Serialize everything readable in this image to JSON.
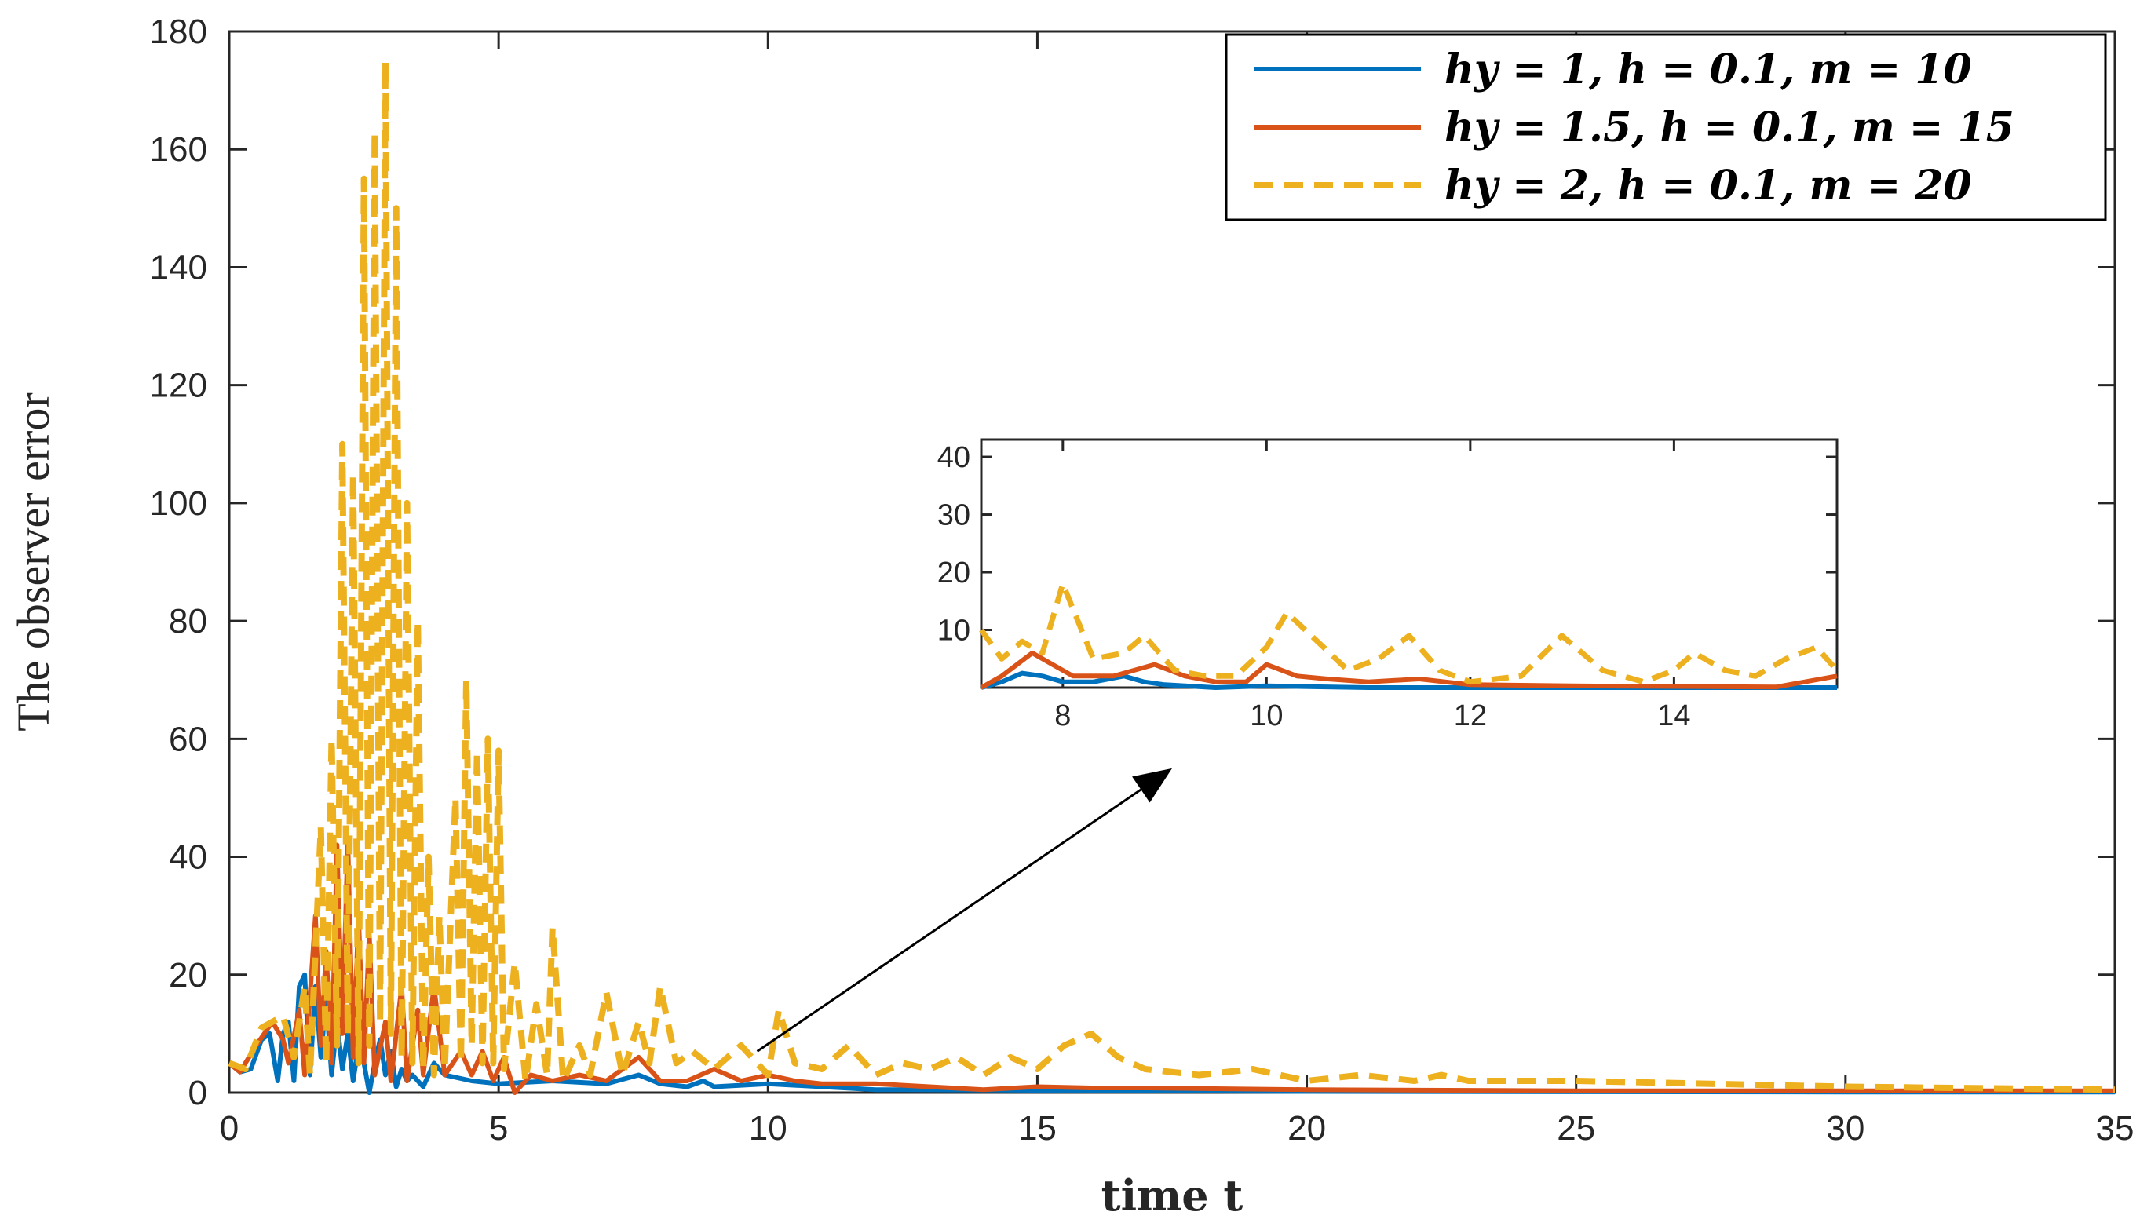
{
  "chart_data": {
    "type": "line",
    "title": "",
    "xlabel": "time t",
    "ylabel": "The observer error",
    "xlim": [
      0,
      35
    ],
    "ylim": [
      0,
      180
    ],
    "xticks": [
      0,
      5,
      10,
      15,
      20,
      25,
      30,
      35
    ],
    "yticks": [
      0,
      20,
      40,
      60,
      80,
      100,
      120,
      140,
      160,
      180
    ],
    "legend_position": "top-right",
    "series": [
      {
        "name": "h_y = 1, h = 0.1, m = 10",
        "legend_label": "hy = 1, h = 0.1, m = 10",
        "color": "#0072BD",
        "style": "solid",
        "points": [
          [
            0,
            5
          ],
          [
            0.2,
            3.5
          ],
          [
            0.4,
            4
          ],
          [
            0.6,
            9
          ],
          [
            0.75,
            10
          ],
          [
            0.9,
            2
          ],
          [
            1.0,
            10
          ],
          [
            1.1,
            12
          ],
          [
            1.2,
            2
          ],
          [
            1.3,
            18
          ],
          [
            1.4,
            20
          ],
          [
            1.5,
            3
          ],
          [
            1.6,
            18
          ],
          [
            1.7,
            6
          ],
          [
            1.8,
            16
          ],
          [
            1.9,
            3
          ],
          [
            2.0,
            12
          ],
          [
            2.1,
            4
          ],
          [
            2.2,
            10
          ],
          [
            2.3,
            2
          ],
          [
            2.4,
            8
          ],
          [
            2.5,
            5
          ],
          [
            2.6,
            0
          ],
          [
            2.7,
            5
          ],
          [
            2.8,
            9
          ],
          [
            2.9,
            3
          ],
          [
            3.0,
            7
          ],
          [
            3.1,
            1
          ],
          [
            3.2,
            4
          ],
          [
            3.3,
            2
          ],
          [
            3.4,
            3
          ],
          [
            3.6,
            1
          ],
          [
            3.8,
            5
          ],
          [
            4.0,
            3
          ],
          [
            4.5,
            2
          ],
          [
            5,
            1.5
          ],
          [
            6,
            2
          ],
          [
            7,
            1.5
          ],
          [
            7.6,
            3
          ],
          [
            8,
            1.5
          ],
          [
            8.5,
            1
          ],
          [
            8.8,
            2
          ],
          [
            9,
            1
          ],
          [
            10,
            1.5
          ],
          [
            12,
            0.5
          ],
          [
            15,
            0.4
          ],
          [
            20,
            0.2
          ],
          [
            25,
            0.15
          ],
          [
            30,
            0.1
          ],
          [
            35,
            0.1
          ]
        ]
      },
      {
        "name": "h_y = 1.5, h = 0.1, m = 15",
        "legend_label": "hy = 1.5, h = 0.1, m = 15",
        "color": "#D95319",
        "style": "solid",
        "points": [
          [
            0,
            5
          ],
          [
            0.2,
            3.5
          ],
          [
            0.5,
            8
          ],
          [
            0.8,
            12
          ],
          [
            1.0,
            9
          ],
          [
            1.1,
            5
          ],
          [
            1.3,
            14
          ],
          [
            1.4,
            3
          ],
          [
            1.6,
            30
          ],
          [
            1.7,
            8
          ],
          [
            1.8,
            24
          ],
          [
            1.9,
            5
          ],
          [
            2.0,
            42
          ],
          [
            2.1,
            10
          ],
          [
            2.2,
            43
          ],
          [
            2.3,
            6
          ],
          [
            2.4,
            30
          ],
          [
            2.5,
            5
          ],
          [
            2.6,
            27
          ],
          [
            2.7,
            3
          ],
          [
            2.9,
            12
          ],
          [
            3.0,
            2
          ],
          [
            3.2,
            18
          ],
          [
            3.3,
            2
          ],
          [
            3.5,
            14
          ],
          [
            3.6,
            3
          ],
          [
            3.8,
            18
          ],
          [
            4.0,
            3
          ],
          [
            4.3,
            7
          ],
          [
            4.5,
            3
          ],
          [
            4.7,
            7
          ],
          [
            4.9,
            2
          ],
          [
            5.1,
            6
          ],
          [
            5.3,
            0
          ],
          [
            5.6,
            3
          ],
          [
            6,
            2
          ],
          [
            6.5,
            3
          ],
          [
            7,
            2
          ],
          [
            7.6,
            6
          ],
          [
            8.0,
            2
          ],
          [
            8.5,
            2
          ],
          [
            9,
            4
          ],
          [
            9.5,
            2
          ],
          [
            10,
            3
          ],
          [
            10.5,
            2
          ],
          [
            11,
            1.5
          ],
          [
            12,
            1.5
          ],
          [
            13,
            1
          ],
          [
            14,
            0.5
          ],
          [
            15,
            1
          ],
          [
            16,
            0.8
          ],
          [
            17,
            0.8
          ],
          [
            20,
            0.5
          ],
          [
            25,
            0.3
          ],
          [
            30,
            0.3
          ],
          [
            35,
            0.3
          ]
        ]
      },
      {
        "name": "h_y = 2, h = 0.1, m = 20",
        "legend_label": "hy = 2, h = 0.1, m = 20",
        "color": "#EDB120",
        "style": "dashed",
        "points": [
          [
            0,
            5
          ],
          [
            0.3,
            4
          ],
          [
            0.6,
            11
          ],
          [
            0.8,
            12
          ],
          [
            1.0,
            13
          ],
          [
            1.2,
            6
          ],
          [
            1.4,
            18
          ],
          [
            1.5,
            3
          ],
          [
            1.7,
            45
          ],
          [
            1.8,
            5
          ],
          [
            1.9,
            60
          ],
          [
            2.0,
            8
          ],
          [
            2.1,
            110
          ],
          [
            2.2,
            10
          ],
          [
            2.3,
            105
          ],
          [
            2.4,
            5
          ],
          [
            2.5,
            155
          ],
          [
            2.6,
            8
          ],
          [
            2.7,
            163
          ],
          [
            2.8,
            12
          ],
          [
            2.9,
            175
          ],
          [
            3.0,
            10
          ],
          [
            3.1,
            150
          ],
          [
            3.2,
            6
          ],
          [
            3.3,
            100
          ],
          [
            3.4,
            5
          ],
          [
            3.5,
            80
          ],
          [
            3.6,
            4
          ],
          [
            3.7,
            40
          ],
          [
            3.8,
            3
          ],
          [
            3.9,
            30
          ],
          [
            4.0,
            4
          ],
          [
            4.2,
            50
          ],
          [
            4.3,
            5
          ],
          [
            4.4,
            70
          ],
          [
            4.5,
            8
          ],
          [
            4.6,
            58
          ],
          [
            4.7,
            5
          ],
          [
            4.8,
            60
          ],
          [
            4.9,
            5
          ],
          [
            5.0,
            58
          ],
          [
            5.1,
            4
          ],
          [
            5.3,
            22
          ],
          [
            5.5,
            2
          ],
          [
            5.7,
            15
          ],
          [
            5.9,
            3
          ],
          [
            6.0,
            28
          ],
          [
            6.2,
            2
          ],
          [
            6.5,
            8
          ],
          [
            6.7,
            3
          ],
          [
            7,
            17
          ],
          [
            7.3,
            3
          ],
          [
            7.6,
            12
          ],
          [
            7.8,
            5
          ],
          [
            8.0,
            18
          ],
          [
            8.3,
            5
          ],
          [
            8.6,
            7
          ],
          [
            9,
            4
          ],
          [
            9.5,
            8
          ],
          [
            10,
            3
          ],
          [
            10.2,
            14
          ],
          [
            10.5,
            5
          ],
          [
            11,
            4
          ],
          [
            11.5,
            8
          ],
          [
            12,
            3
          ],
          [
            12.5,
            5
          ],
          [
            13,
            4
          ],
          [
            13.5,
            6
          ],
          [
            14,
            3
          ],
          [
            14.5,
            6
          ],
          [
            15,
            4
          ],
          [
            15.5,
            8
          ],
          [
            16,
            10
          ],
          [
            16.5,
            6
          ],
          [
            17,
            4
          ],
          [
            18,
            3
          ],
          [
            19,
            4
          ],
          [
            20,
            2
          ],
          [
            21,
            3
          ],
          [
            22,
            2
          ],
          [
            22.5,
            3
          ],
          [
            23,
            2
          ],
          [
            25,
            2
          ],
          [
            30,
            1
          ],
          [
            35,
            0.5
          ]
        ]
      }
    ],
    "annotations": [
      {
        "type": "arrow",
        "from": [
          9.8,
          7
        ],
        "to": [
          17.5,
          55
        ]
      }
    ],
    "inset": {
      "xlim": [
        7.2,
        15.6
      ],
      "ylim": [
        0,
        43
      ],
      "xticks": [
        8,
        10,
        12,
        14
      ],
      "yticks": [
        10,
        20,
        30,
        40
      ],
      "series": [
        {
          "name": "h_y = 1, h = 0.1, m = 10",
          "color": "#0072BD",
          "style": "solid",
          "points": [
            [
              7.2,
              0
            ],
            [
              7.4,
              1
            ],
            [
              7.6,
              2.5
            ],
            [
              7.8,
              2
            ],
            [
              8.0,
              1
            ],
            [
              8.3,
              1
            ],
            [
              8.6,
              2
            ],
            [
              8.8,
              1
            ],
            [
              9.0,
              0.5
            ],
            [
              9.5,
              0
            ],
            [
              10,
              0.3
            ],
            [
              11,
              0
            ],
            [
              12,
              0
            ],
            [
              13,
              0
            ],
            [
              14,
              0
            ],
            [
              15,
              0
            ],
            [
              15.6,
              0
            ]
          ]
        },
        {
          "name": "h_y = 1.5, h = 0.1, m = 15",
          "color": "#D95319",
          "style": "solid",
          "points": [
            [
              7.2,
              0
            ],
            [
              7.4,
              2
            ],
            [
              7.7,
              6
            ],
            [
              7.9,
              4
            ],
            [
              8.1,
              2
            ],
            [
              8.5,
              2
            ],
            [
              8.9,
              4
            ],
            [
              9.2,
              2
            ],
            [
              9.5,
              1
            ],
            [
              9.8,
              1
            ],
            [
              10.0,
              4
            ],
            [
              10.3,
              2
            ],
            [
              10.6,
              1.5
            ],
            [
              11.0,
              1
            ],
            [
              11.5,
              1.5
            ],
            [
              12,
              0.5
            ],
            [
              13,
              0.3
            ],
            [
              14,
              0.2
            ],
            [
              15,
              0.1
            ],
            [
              15.6,
              2
            ]
          ]
        },
        {
          "name": "h_y = 2, h = 0.1, m = 20",
          "color": "#EDB120",
          "style": "dashed",
          "points": [
            [
              7.2,
              10
            ],
            [
              7.4,
              5
            ],
            [
              7.6,
              8
            ],
            [
              7.8,
              6
            ],
            [
              8.0,
              18
            ],
            [
              8.3,
              5
            ],
            [
              8.6,
              6
            ],
            [
              8.8,
              9
            ],
            [
              9.1,
              3
            ],
            [
              9.4,
              2
            ],
            [
              9.7,
              2
            ],
            [
              10.0,
              7
            ],
            [
              10.2,
              13
            ],
            [
              10.5,
              8
            ],
            [
              10.8,
              3
            ],
            [
              11.1,
              5
            ],
            [
              11.4,
              9
            ],
            [
              11.7,
              3
            ],
            [
              12.0,
              1
            ],
            [
              12.5,
              2
            ],
            [
              12.9,
              9
            ],
            [
              13.3,
              3
            ],
            [
              13.7,
              1
            ],
            [
              14.0,
              3
            ],
            [
              14.2,
              6
            ],
            [
              14.5,
              3
            ],
            [
              14.8,
              2
            ],
            [
              15.1,
              5
            ],
            [
              15.4,
              7
            ],
            [
              15.6,
              3
            ]
          ]
        }
      ]
    }
  }
}
